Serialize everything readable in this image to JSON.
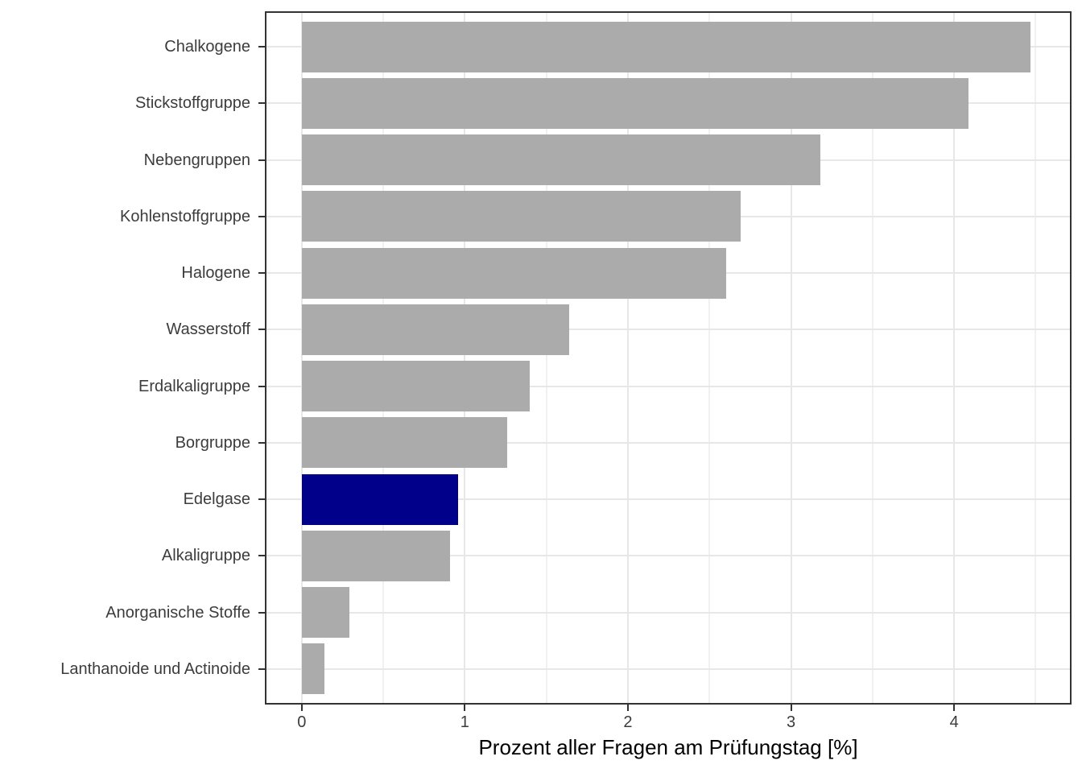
{
  "chart_data": {
    "type": "bar",
    "orientation": "horizontal",
    "title": "",
    "xlabel": "Prozent aller Fragen am Prüfungstag [%]",
    "ylabel": "",
    "categories": [
      "Chalkogene",
      "Stickstoffgruppe",
      "Nebengruppen",
      "Kohlenstoffgruppe",
      "Halogene",
      "Wasserstoff",
      "Erdalkaligruppe",
      "Borgruppe",
      "Edelgase",
      "Alkaligruppe",
      "Anorganische Stoffe",
      "Lanthanoide und Actinoide"
    ],
    "values": [
      4.47,
      4.09,
      3.18,
      2.69,
      2.6,
      1.64,
      1.4,
      1.26,
      0.96,
      0.91,
      0.29,
      0.14
    ],
    "highlighted_category": "Edelgase",
    "bar_default_color": "#ABABAB",
    "highlight_color": "#00008B",
    "xlim": [
      -0.216,
      4.71
    ],
    "x_major_ticks": [
      0,
      1,
      2,
      3,
      4
    ],
    "x_minor_ticks": [
      0.5,
      1.5,
      2.5,
      3.5,
      4.5
    ],
    "grid": "on",
    "legend": "none",
    "panel_border_color": "#333333",
    "grid_major_color": "#e7e7e7",
    "grid_minor_color": "#f1f1f1",
    "axis_text_color": "#3c3c3c",
    "axis_title_color": "#000000"
  }
}
